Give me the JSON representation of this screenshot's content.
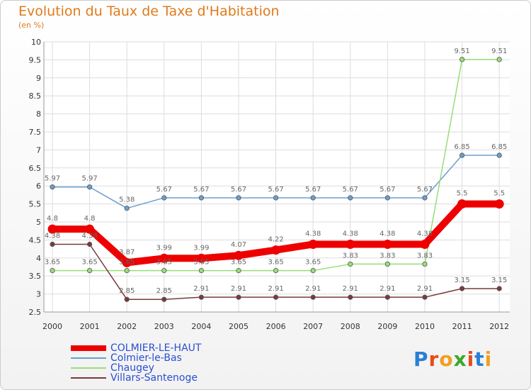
{
  "chart_data": {
    "type": "line",
    "title": "Evolution du Taux de Taxe d'Habitation",
    "subtitle": "(en %)",
    "categories": [
      "2000",
      "2001",
      "2002",
      "2003",
      "2004",
      "2005",
      "2006",
      "2007",
      "2008",
      "2009",
      "2010",
      "2011",
      "2012"
    ],
    "ylim": [
      2.5,
      10
    ],
    "yticks": [
      "2.5",
      "3",
      "3.5",
      "4",
      "4.5",
      "5",
      "5.5",
      "6",
      "6.5",
      "7",
      "7.5",
      "8",
      "8.5",
      "9",
      "9.5",
      "10"
    ],
    "grid": true,
    "legend_position": "bottom-left",
    "series": [
      {
        "name": "COLMIER-LE-HAUT",
        "color": "#ee0000",
        "values": [
          4.8,
          4.8,
          3.87,
          3.99,
          3.99,
          4.07,
          4.22,
          4.38,
          4.38,
          4.38,
          4.38,
          5.5,
          5.5
        ],
        "labels": [
          "4.8",
          "4.8",
          "3.87",
          "3.99",
          "3.99",
          "4.07",
          "4.22",
          "4.38",
          "4.38",
          "4.38",
          "4.38",
          "5.5",
          "5.5"
        ]
      },
      {
        "name": "Colmier-le-Bas",
        "color": "#6a9fd0",
        "values": [
          5.97,
          5.97,
          5.38,
          5.67,
          5.67,
          5.67,
          5.67,
          5.67,
          5.67,
          5.67,
          5.67,
          6.85,
          6.85
        ],
        "labels": [
          "5.97",
          "5.97",
          "5.38",
          "5.67",
          "5.67",
          "5.67",
          "5.67",
          "5.67",
          "5.67",
          "5.67",
          "5.67",
          "6.85",
          "6.85"
        ]
      },
      {
        "name": "Chaugey",
        "color": "#99dd77",
        "values": [
          3.65,
          3.65,
          3.65,
          3.65,
          3.65,
          3.65,
          3.65,
          3.65,
          3.83,
          3.83,
          3.83,
          9.51,
          9.51
        ],
        "labels": [
          "3.65",
          "3.65",
          "3.65",
          "3.65",
          "3.65",
          "3.65",
          "3.65",
          "3.65",
          "3.83",
          "3.83",
          "3.83",
          "9.51",
          "9.51"
        ]
      },
      {
        "name": "Villars-Santenoge",
        "color": "#7a3a3a",
        "values": [
          4.38,
          4.38,
          2.85,
          2.85,
          2.91,
          2.91,
          2.91,
          2.91,
          2.91,
          2.91,
          2.91,
          3.15,
          3.15
        ],
        "labels": [
          "4.38",
          "4.38",
          "2.85",
          "2.85",
          "2.91",
          "2.91",
          "2.91",
          "2.91",
          "2.91",
          "2.91",
          "2.91",
          "3.15",
          "3.15"
        ]
      }
    ]
  },
  "logo_text": "Proxiti"
}
